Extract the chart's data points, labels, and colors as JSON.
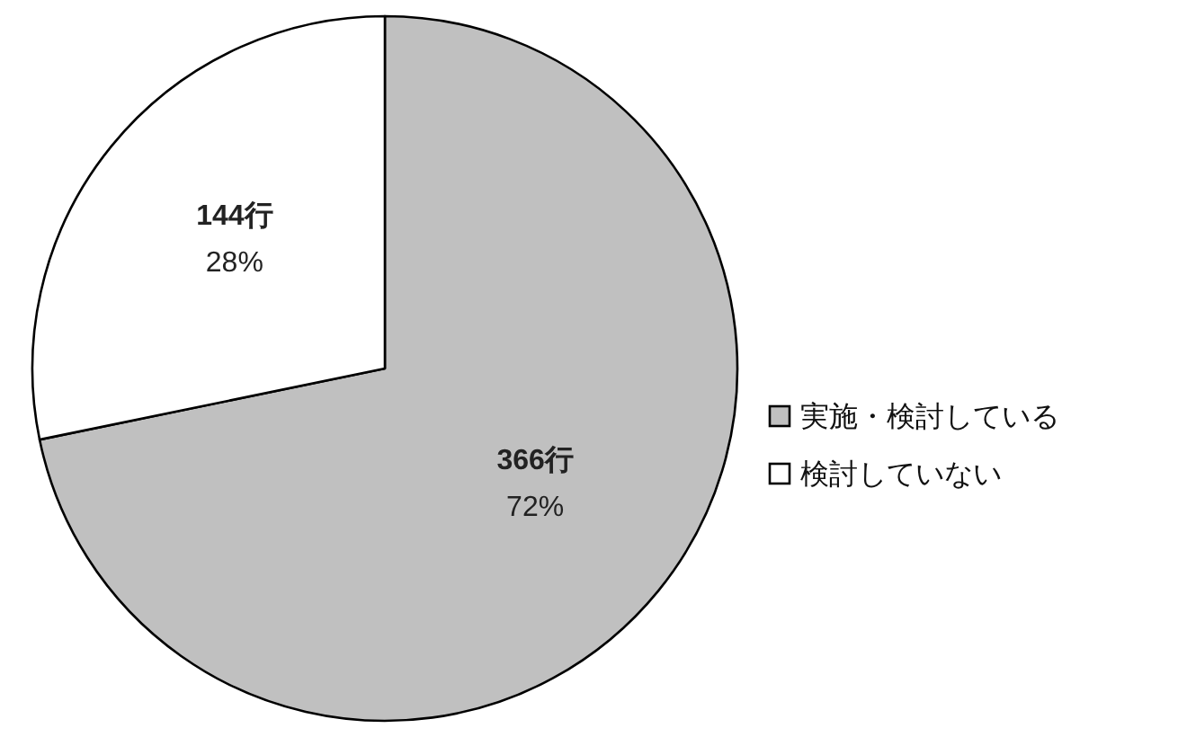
{
  "chart_data": {
    "type": "pie",
    "categories": [
      "実施・検討している",
      "検討していない"
    ],
    "values": [
      366,
      144
    ],
    "colors": [
      "#c0c0c0",
      "#ffffff"
    ],
    "value_labels": [
      "366行\n72%",
      "144行\n28%"
    ],
    "legend": "right"
  }
}
